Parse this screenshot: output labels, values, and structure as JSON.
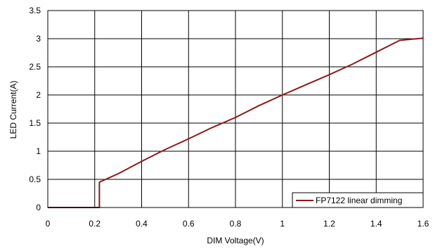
{
  "chart_data": {
    "type": "line",
    "title": "",
    "xlabel": "DIM Voltage(V)",
    "ylabel": "LED Current(A)",
    "xlim": [
      0,
      1.6
    ],
    "ylim": [
      0,
      3.5
    ],
    "xticks": [
      0,
      0.2,
      0.4,
      0.6,
      0.8,
      1.0,
      1.2,
      1.4,
      1.6
    ],
    "xtick_labels": [
      "0",
      "0.2",
      "0.4",
      "0.6",
      "0.8",
      "1",
      "1.2",
      "1.4",
      "1.6"
    ],
    "yticks": [
      0,
      0.5,
      1.0,
      1.5,
      2.0,
      2.5,
      3.0,
      3.5
    ],
    "ytick_labels": [
      "0",
      "0.5",
      "1",
      "1.5",
      "2",
      "2.5",
      "3",
      "3.5"
    ],
    "grid": true,
    "legend_position": "bottom-right",
    "series": [
      {
        "name": "FP7122 linear dimming",
        "color": "#8b1a1a",
        "points": [
          [
            0.0,
            0.0
          ],
          [
            0.22,
            0.0
          ],
          [
            0.22,
            0.45
          ],
          [
            0.3,
            0.6
          ],
          [
            0.4,
            0.82
          ],
          [
            0.5,
            1.03
          ],
          [
            0.6,
            1.22
          ],
          [
            0.7,
            1.42
          ],
          [
            0.8,
            1.6
          ],
          [
            0.9,
            1.81
          ],
          [
            1.0,
            2.0
          ],
          [
            1.1,
            2.18
          ],
          [
            1.2,
            2.36
          ],
          [
            1.3,
            2.55
          ],
          [
            1.4,
            2.76
          ],
          [
            1.5,
            2.97
          ],
          [
            1.6,
            3.01
          ]
        ]
      }
    ]
  }
}
